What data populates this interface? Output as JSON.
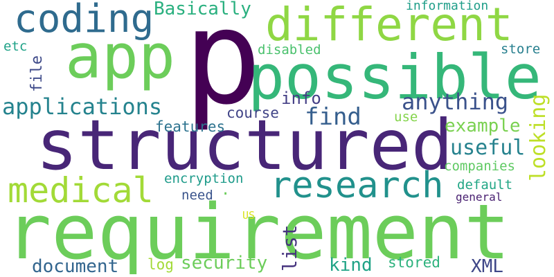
{
  "words": {
    "requirement": {
      "text": "requirement",
      "color": "#6ccd5a"
    },
    "structured": {
      "text": "structured",
      "color": "#482677"
    },
    "p": {
      "text": "p",
      "color": "#440154"
    },
    "possible": {
      "text": "possible",
      "color": "#35b779"
    },
    "different": {
      "text": "different",
      "color": "#8fd744"
    },
    "app": {
      "text": "app",
      "color": "#6ccd5a"
    },
    "coding": {
      "text": "coding",
      "color": "#2f6b8e"
    },
    "research": {
      "text": "research",
      "color": "#21918c"
    },
    "medical": {
      "text": "medical",
      "color": "#a2da37"
    },
    "applications": {
      "text": "applications",
      "color": "#25838e"
    },
    "anything": {
      "text": "anything",
      "color": "#3b528b"
    },
    "find": {
      "text": "find",
      "color": "#355e8d"
    },
    "useful": {
      "text": "useful",
      "color": "#26828e"
    },
    "example": {
      "text": "example",
      "color": "#7ad151"
    },
    "looking": {
      "text": "looking",
      "color": "#bddf26"
    },
    "basically": {
      "text": "Basically",
      "color": "#2ab07f"
    },
    "information": {
      "text": "information",
      "color": "#1f9e89"
    },
    "disabled": {
      "text": "disabled",
      "color": "#4ac16d"
    },
    "store": {
      "text": "store",
      "color": "#277f8e"
    },
    "etc": {
      "text": "etc",
      "color": "#1fa287"
    },
    "file": {
      "text": "file",
      "color": "#3e4a89"
    },
    "info": {
      "text": "info",
      "color": "#433e85"
    },
    "course": {
      "text": "course",
      "color": "#414487"
    },
    "use": {
      "text": "use",
      "color": "#84d44b"
    },
    "features": {
      "text": "features",
      "color": "#2c728e"
    },
    "companies": {
      "text": "companies",
      "color": "#5ec962"
    },
    "encryption": {
      "text": "encryption",
      "color": "#1e9b8a"
    },
    "default": {
      "text": "default",
      "color": "#21a685"
    },
    "need": {
      "text": "need",
      "color": "#3a548c"
    },
    "general": {
      "text": "general",
      "color": "#481f70"
    },
    "us": {
      "text": "US",
      "color": "#d8e219"
    },
    "list": {
      "text": "list",
      "color": "#46337e"
    },
    "document": {
      "text": "document",
      "color": "#32658e"
    },
    "log": {
      "text": "log",
      "color": "#a2da37"
    },
    "security": {
      "text": "security",
      "color": "#6ccd5a"
    },
    "kind": {
      "text": "kind",
      "color": "#20a386"
    },
    "stored": {
      "text": "stored",
      "color": "#2db27d"
    },
    "xml": {
      "text": "XML",
      "color": "#3f4788"
    },
    "dot": {
      "text": ".",
      "color": "#6ccd5a"
    }
  }
}
